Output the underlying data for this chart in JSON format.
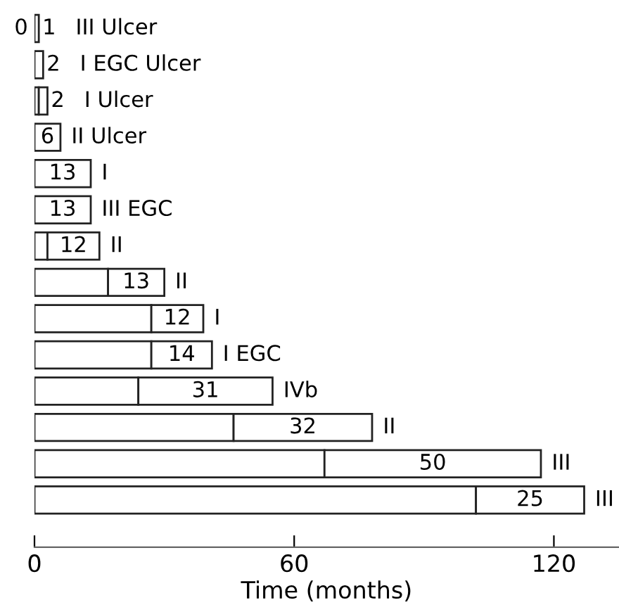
{
  "chart_data": {
    "type": "bar",
    "orientation": "horizontal",
    "stacked": true,
    "categories": [
      "III Ulcer",
      "I EGC Ulcer",
      "I Ulcer",
      "II Ulcer",
      "I",
      "III EGC",
      "II",
      "II",
      "I",
      "I EGC",
      "IVb",
      "II",
      "III",
      "III"
    ],
    "series": [
      {
        "color": "#ffffff",
        "values": [
          0,
          0,
          1,
          0,
          0,
          0,
          3,
          17,
          27,
          27,
          24,
          46,
          67,
          102
        ],
        "value_labels": [
          "0",
          null,
          null,
          null,
          null,
          null,
          null,
          null,
          null,
          null,
          null,
          null,
          null,
          null
        ]
      },
      {
        "color": "#ffffff",
        "values": [
          1,
          2,
          2,
          6,
          13,
          13,
          12,
          13,
          12,
          14,
          31,
          32,
          50,
          25
        ],
        "data_labels": true
      }
    ],
    "xlabel": "Time (months)",
    "xlim": [
      0,
      135
    ],
    "xticks": [
      0,
      60,
      120
    ],
    "grid": false,
    "legend": false,
    "tick_labels": "x"
  }
}
